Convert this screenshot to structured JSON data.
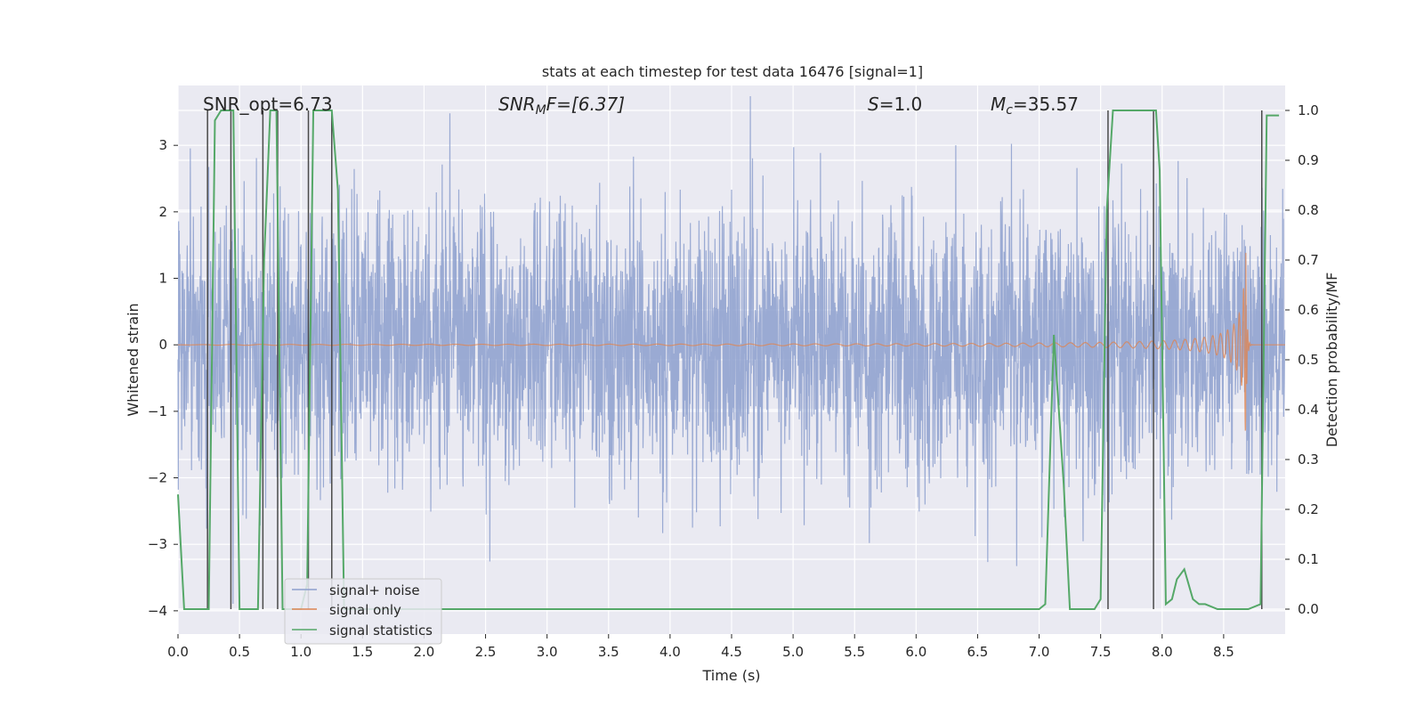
{
  "chart_data": {
    "type": "line",
    "title": "stats at each timestep for test data 16476 [signal=1]",
    "xlabel": "Time (s)",
    "ylabel_left": "Whitened strain",
    "ylabel_right": "Detection probability/MF",
    "xlim": [
      0.0,
      9.0
    ],
    "ylim_left": [
      -4.35,
      3.9
    ],
    "ylim_right": [
      -0.05,
      1.05
    ],
    "x_ticks": [
      0.0,
      0.5,
      1.0,
      1.5,
      2.0,
      2.5,
      3.0,
      3.5,
      4.0,
      4.5,
      5.0,
      5.5,
      6.0,
      6.5,
      7.0,
      7.5,
      8.0,
      8.5
    ],
    "x_tick_labels": [
      "0.0",
      "0.5",
      "1.0",
      "1.5",
      "2.0",
      "2.5",
      "3.0",
      "3.5",
      "4.0",
      "4.5",
      "5.0",
      "5.5",
      "6.0",
      "6.5",
      "7.0",
      "7.5",
      "8.0",
      "8.5"
    ],
    "y_left_ticks": [
      3,
      2,
      1,
      0,
      -1,
      -2,
      -3,
      -4
    ],
    "y_left_tick_labels": [
      "3",
      "2",
      "1",
      "0",
      "−1",
      "−2",
      "−3",
      "−4"
    ],
    "y_right_ticks": [
      1.0,
      0.9,
      0.8,
      0.7,
      0.6,
      0.5,
      0.4,
      0.3,
      0.2,
      0.1,
      0.0
    ],
    "y_right_tick_labels": [
      "1.0",
      "0.9",
      "0.8",
      "0.7",
      "0.6",
      "0.5",
      "0.4",
      "0.3",
      "0.2",
      "0.1",
      "0.0"
    ],
    "annotations": {
      "snr_opt": "SNR_opt=6.73",
      "snr_mf_prefix": "SNR",
      "snr_mf_sub": "M",
      "snr_mf_suffix": "F=[6.37]",
      "s_var": "S",
      "s_value": "=1.0",
      "mc_var": "M",
      "mc_sub": "c",
      "mc_value": "=35.57"
    },
    "legend": {
      "position": "lower-left",
      "entries": [
        {
          "label": "signal+ noise",
          "color": "#8c9fce"
        },
        {
          "label": "signal only",
          "color": "#dd8452"
        },
        {
          "label": "signal statistics",
          "color": "#55a868"
        }
      ]
    },
    "colors": {
      "background": "#eaeaf2",
      "grid": "#ffffff",
      "noise": "#8c9fce",
      "signal": "#dd8452",
      "statistics": "#55a868",
      "markers": "#4a4a4a"
    },
    "series": [
      {
        "name": "signal+ noise",
        "axis": "left",
        "description_type": "noise",
        "sigma": 1.0,
        "duration": 9.0
      },
      {
        "name": "signal only",
        "axis": "left",
        "chirp_peak_time": 8.68,
        "chirp_peak_amplitude": 1.5
      },
      {
        "name": "signal statistics",
        "axis": "right",
        "x": [
          0.0,
          0.05,
          0.25,
          0.3,
          0.35,
          0.45,
          0.5,
          0.52,
          0.6,
          0.65,
          0.7,
          0.75,
          0.8,
          0.85,
          0.9,
          0.95,
          1.0,
          1.05,
          1.1,
          1.15,
          1.25,
          1.3,
          1.35,
          1.4,
          1.45,
          1.5,
          2.0,
          3.0,
          4.0,
          5.0,
          6.0,
          7.0,
          7.05,
          7.12,
          7.2,
          7.25,
          7.35,
          7.45,
          7.5,
          7.55,
          7.6,
          7.65,
          7.7,
          7.95,
          7.98,
          8.03,
          8.08,
          8.12,
          8.18,
          8.25,
          8.3,
          8.35,
          8.45,
          8.5,
          8.6,
          8.7,
          8.8,
          8.85,
          8.9,
          8.95
        ],
        "y": [
          0.23,
          0.0,
          0.0,
          0.98,
          1.0,
          1.0,
          0.0,
          0.0,
          0.0,
          0.0,
          0.7,
          1.0,
          1.0,
          0.0,
          0.0,
          0.0,
          0.0,
          0.05,
          1.0,
          1.0,
          1.0,
          0.84,
          0.0,
          0.0,
          0.0,
          0.0,
          0.0,
          0.0,
          0.0,
          0.0,
          0.0,
          0.0,
          0.01,
          0.55,
          0.25,
          0.0,
          0.0,
          0.0,
          0.02,
          0.8,
          1.0,
          1.0,
          1.0,
          1.0,
          0.88,
          0.01,
          0.02,
          0.06,
          0.08,
          0.02,
          0.01,
          0.01,
          0.0,
          0.0,
          0.0,
          0.0,
          0.01,
          0.99,
          0.99,
          0.99
        ]
      }
    ],
    "marker_lines_x": [
      0.24,
      0.43,
      0.69,
      0.81,
      1.06,
      1.25,
      7.56,
      7.93,
      8.81
    ]
  }
}
